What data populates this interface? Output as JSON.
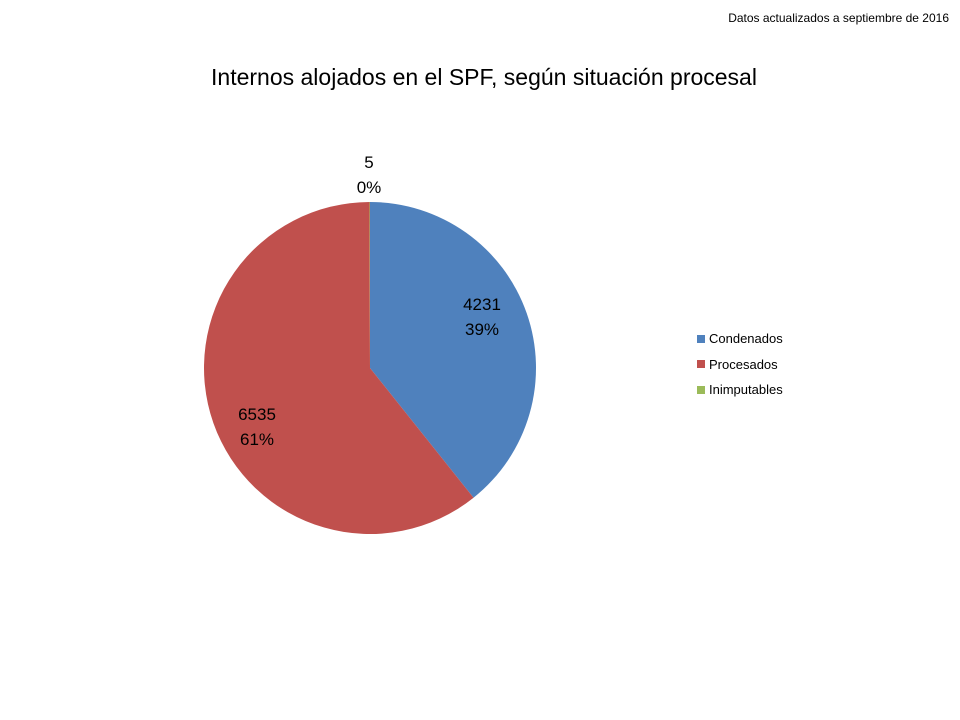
{
  "header": {
    "note": "Datos actualizados a septiembre de 2016"
  },
  "chart_data": {
    "type": "pie",
    "title": "Internos alojados en el SPF, según situación procesal",
    "slices": [
      {
        "name": "Condenados",
        "value": 4231,
        "percent_label": "39%",
        "color": "#4F81BD"
      },
      {
        "name": "Procesados",
        "value": 6535,
        "percent_label": "61%",
        "color": "#C0504D"
      },
      {
        "name": "Inimputables",
        "value": 5,
        "percent_label": "0%",
        "color": "#9BBB59"
      }
    ],
    "legend_position": "right"
  }
}
